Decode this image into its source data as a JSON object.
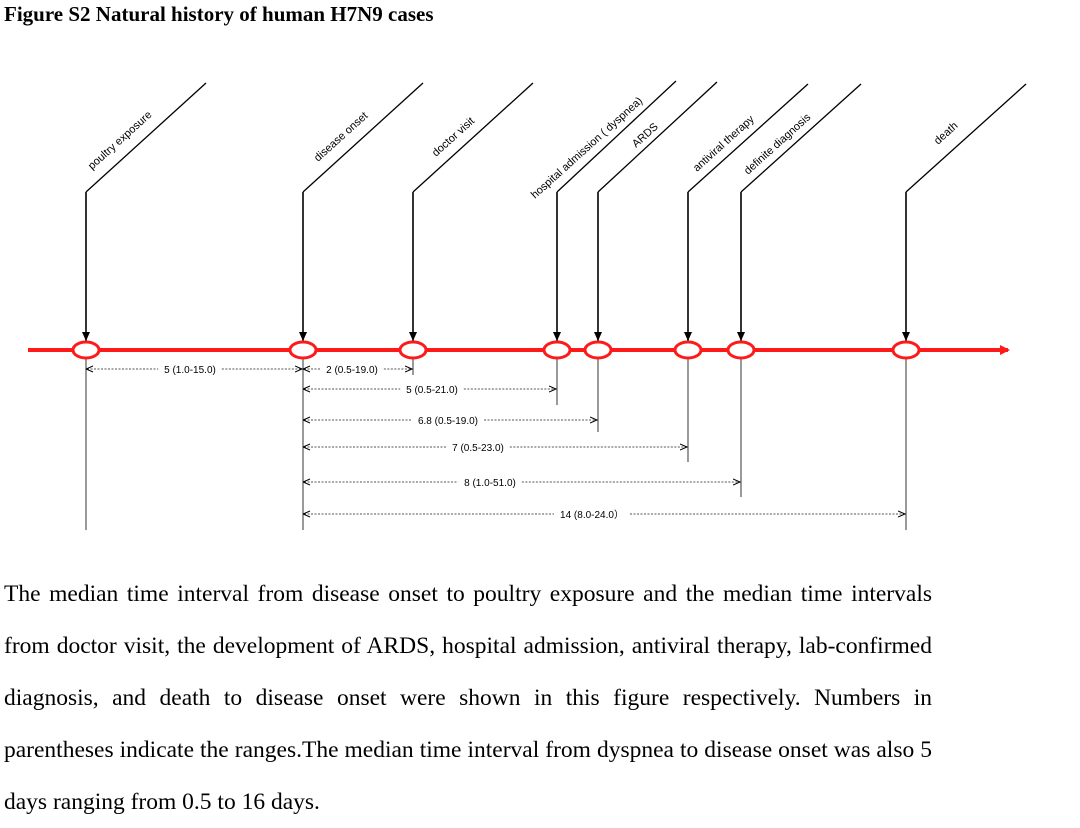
{
  "figure": {
    "title": "Figure S2 Natural history of human H7N9 cases"
  },
  "events": [
    {
      "key": "poultry-exposure",
      "label": "poultry exposure"
    },
    {
      "key": "disease-onset",
      "label": "disease onset"
    },
    {
      "key": "doctor-visit",
      "label": "doctor visit"
    },
    {
      "key": "hospital-admission",
      "label": "hospital admission ( dyspnea)"
    },
    {
      "key": "ards",
      "label": "ARDS"
    },
    {
      "key": "antiviral-therapy",
      "label": "antiviral therapy"
    },
    {
      "key": "definite-diagnosis",
      "label": "definite diagnosis"
    },
    {
      "key": "death",
      "label": "death"
    }
  ],
  "intervals": [
    {
      "from": "poultry-exposure",
      "to": "disease-onset",
      "label": "5 (1.0-15.0)"
    },
    {
      "from": "disease-onset",
      "to": "doctor-visit",
      "label": "2 (0.5-19.0)"
    },
    {
      "from": "disease-onset",
      "to": "hospital-admission",
      "label": "5 (0.5-21.0)"
    },
    {
      "from": "disease-onset",
      "to": "ards",
      "label": "6.8 (0.5-19.0)"
    },
    {
      "from": "disease-onset",
      "to": "antiviral-therapy",
      "label": "7 (0.5-23.0)"
    },
    {
      "from": "disease-onset",
      "to": "definite-diagnosis",
      "label": "8 (1.0-51.0)"
    },
    {
      "from": "disease-onset",
      "to": "death",
      "label": "14 (8.0-24.0）"
    }
  ],
  "colors": {
    "timeline": "#ff1a1a",
    "ink": "#000000",
    "dash": "#555555"
  },
  "caption": {
    "text": "The median time interval from disease onset to poultry exposure and the median time intervals from doctor visit, the development of ARDS, hospital admission, antiviral therapy, lab-confirmed diagnosis, and death to disease onset were shown in this figure respectively. Numbers in parentheses indicate the ranges.The median time interval from dyspnea to disease onset was also 5 days ranging from 0.5 to 16 days."
  }
}
